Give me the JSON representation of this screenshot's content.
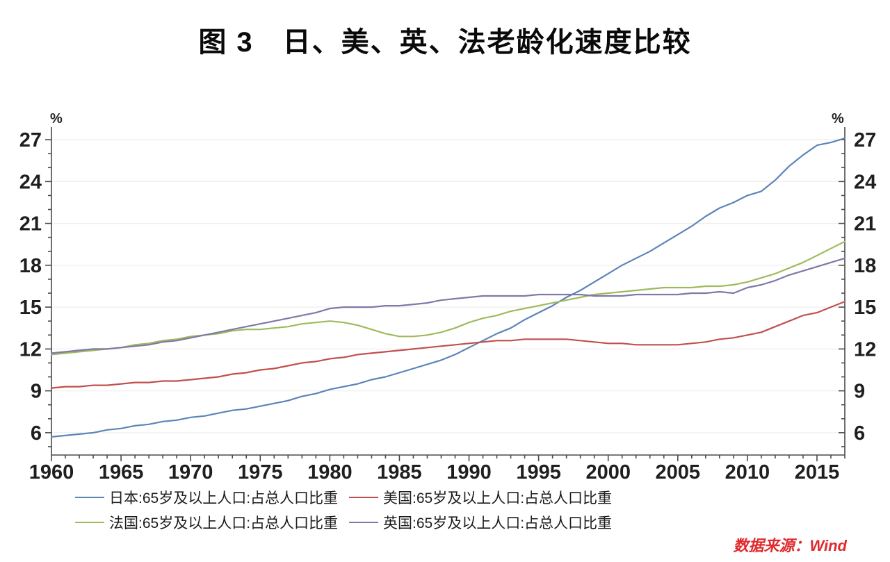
{
  "title": "图 3　日、美、英、法老龄化速度比较",
  "source_note": "数据来源：Wind",
  "chart_data": {
    "type": "line",
    "title": "图 3　日、美、英、法老龄化速度比较",
    "unit_label": "%",
    "xlabel": "",
    "ylabel": "%",
    "xlim": [
      1960,
      2017
    ],
    "ylim": [
      4.4,
      27.9
    ],
    "x_tick_labels": [
      "1960",
      "1965",
      "1970",
      "1975",
      "1980",
      "1985",
      "1990",
      "1995",
      "2000",
      "2005",
      "2010",
      "2015"
    ],
    "y_ticks": [
      6,
      9,
      12,
      15,
      18,
      21,
      24,
      27
    ],
    "grid": true,
    "legend_position": "bottom",
    "x": [
      1960,
      1961,
      1962,
      1963,
      1964,
      1965,
      1966,
      1967,
      1968,
      1969,
      1970,
      1971,
      1972,
      1973,
      1974,
      1975,
      1976,
      1977,
      1978,
      1979,
      1980,
      1981,
      1982,
      1983,
      1984,
      1985,
      1986,
      1987,
      1988,
      1989,
      1990,
      1991,
      1992,
      1993,
      1994,
      1995,
      1996,
      1997,
      1998,
      1999,
      2000,
      2001,
      2002,
      2003,
      2004,
      2005,
      2006,
      2007,
      2008,
      2009,
      2010,
      2011,
      2012,
      2013,
      2014,
      2015,
      2016,
      2017
    ],
    "series": [
      {
        "name": "日本:65岁及以上人口:占总人口比重",
        "color": "#5b84b8",
        "values": [
          5.7,
          5.8,
          5.9,
          6.0,
          6.2,
          6.3,
          6.5,
          6.6,
          6.8,
          6.9,
          7.1,
          7.2,
          7.4,
          7.6,
          7.7,
          7.9,
          8.1,
          8.3,
          8.6,
          8.8,
          9.1,
          9.3,
          9.5,
          9.8,
          10.0,
          10.3,
          10.6,
          10.9,
          11.2,
          11.6,
          12.1,
          12.6,
          13.1,
          13.5,
          14.1,
          14.6,
          15.1,
          15.7,
          16.2,
          16.8,
          17.4,
          18.0,
          18.5,
          19.0,
          19.6,
          20.2,
          20.8,
          21.5,
          22.1,
          22.5,
          23.0,
          23.3,
          24.1,
          25.1,
          25.9,
          26.6,
          26.8,
          27.1
        ]
      },
      {
        "name": "美国:65岁及以上人口:占总人口比重",
        "color": "#c0504d",
        "values": [
          9.2,
          9.3,
          9.3,
          9.4,
          9.4,
          9.5,
          9.6,
          9.6,
          9.7,
          9.7,
          9.8,
          9.9,
          10.0,
          10.2,
          10.3,
          10.5,
          10.6,
          10.8,
          11.0,
          11.1,
          11.3,
          11.4,
          11.6,
          11.7,
          11.8,
          11.9,
          12.0,
          12.1,
          12.2,
          12.3,
          12.4,
          12.5,
          12.6,
          12.6,
          12.7,
          12.7,
          12.7,
          12.7,
          12.6,
          12.5,
          12.4,
          12.4,
          12.3,
          12.3,
          12.3,
          12.3,
          12.4,
          12.5,
          12.7,
          12.8,
          13.0,
          13.2,
          13.6,
          14.0,
          14.4,
          14.6,
          15.0,
          15.4
        ]
      },
      {
        "name": "法国:65岁及以上人口:占总人口比重",
        "color": "#9fba5c",
        "values": [
          11.6,
          11.7,
          11.8,
          11.9,
          12.0,
          12.1,
          12.3,
          12.4,
          12.6,
          12.7,
          12.9,
          13.0,
          13.1,
          13.3,
          13.4,
          13.4,
          13.5,
          13.6,
          13.8,
          13.9,
          14.0,
          13.9,
          13.7,
          13.4,
          13.1,
          12.9,
          12.9,
          13.0,
          13.2,
          13.5,
          13.9,
          14.2,
          14.4,
          14.7,
          14.9,
          15.1,
          15.3,
          15.5,
          15.7,
          15.9,
          16.0,
          16.1,
          16.2,
          16.3,
          16.4,
          16.4,
          16.4,
          16.5,
          16.5,
          16.6,
          16.8,
          17.1,
          17.4,
          17.8,
          18.2,
          18.7,
          19.2,
          19.7
        ]
      },
      {
        "name": "英国:65岁及以上人口:占总人口比重",
        "color": "#7f78a8",
        "values": [
          11.7,
          11.8,
          11.9,
          12.0,
          12.0,
          12.1,
          12.2,
          12.3,
          12.5,
          12.6,
          12.8,
          13.0,
          13.2,
          13.4,
          13.6,
          13.8,
          14.0,
          14.2,
          14.4,
          14.6,
          14.9,
          15.0,
          15.0,
          15.0,
          15.1,
          15.1,
          15.2,
          15.3,
          15.5,
          15.6,
          15.7,
          15.8,
          15.8,
          15.8,
          15.8,
          15.9,
          15.9,
          15.9,
          15.9,
          15.8,
          15.8,
          15.8,
          15.9,
          15.9,
          15.9,
          15.9,
          16.0,
          16.0,
          16.1,
          16.0,
          16.4,
          16.6,
          16.9,
          17.3,
          17.6,
          17.9,
          18.2,
          18.5
        ]
      }
    ],
    "colors": {
      "axis": "#4a4a4a",
      "grid": "#f2eded",
      "tick_label": "#1f1f1f",
      "source_text": "#e02a2e"
    }
  }
}
